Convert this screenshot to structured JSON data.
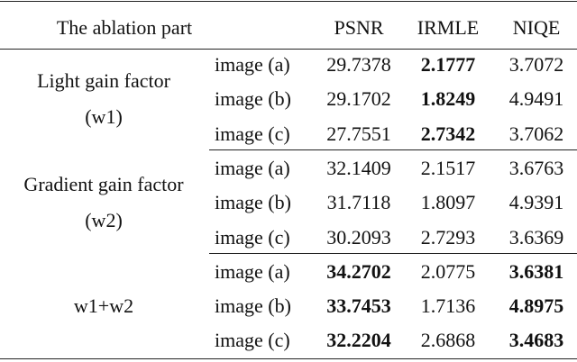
{
  "table": {
    "header": [
      "The ablation part",
      "PSNR",
      "IRMLE",
      "NIQE"
    ],
    "groups": [
      {
        "label": [
          "Light gain factor",
          "(w1)"
        ],
        "rows": [
          {
            "image": "image (a)",
            "cells": [
              "29.7378",
              "2.1777",
              "3.7072"
            ],
            "bold": [
              false,
              true,
              false
            ]
          },
          {
            "image": "image (b)",
            "cells": [
              "29.1702",
              "1.8249",
              "4.9491"
            ],
            "bold": [
              false,
              true,
              false
            ]
          },
          {
            "image": "image (c)",
            "cells": [
              "27.7551",
              "2.7342",
              "3.7062"
            ],
            "bold": [
              false,
              true,
              false
            ]
          }
        ]
      },
      {
        "label": [
          "Gradient gain factor",
          "(w2)"
        ],
        "rows": [
          {
            "image": "image (a)",
            "cells": [
              "32.1409",
              "2.1517",
              "3.6763"
            ],
            "bold": [
              false,
              false,
              false
            ]
          },
          {
            "image": "image (b)",
            "cells": [
              "31.7118",
              "1.8097",
              "4.9391"
            ],
            "bold": [
              false,
              false,
              false
            ]
          },
          {
            "image": "image (c)",
            "cells": [
              "30.2093",
              "2.7293",
              "3.6369"
            ],
            "bold": [
              false,
              false,
              false
            ]
          }
        ]
      },
      {
        "label": [
          "w1+w2"
        ],
        "rows": [
          {
            "image": "image (a)",
            "cells": [
              "34.2702",
              "2.0775",
              "3.6381"
            ],
            "bold": [
              true,
              false,
              true
            ]
          },
          {
            "image": "image (b)",
            "cells": [
              "33.7453",
              "1.7136",
              "4.8975"
            ],
            "bold": [
              true,
              false,
              true
            ]
          },
          {
            "image": "image (c)",
            "cells": [
              "32.2204",
              "2.6868",
              "3.4683"
            ],
            "bold": [
              true,
              false,
              true
            ]
          }
        ]
      }
    ]
  }
}
